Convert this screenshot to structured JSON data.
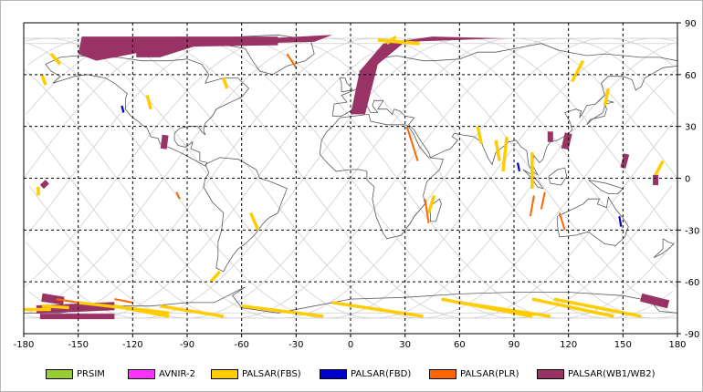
{
  "map": {
    "lon_range": [
      -180,
      180
    ],
    "lat_range": [
      -90,
      90
    ],
    "lon_ticks": [
      -180,
      -150,
      -120,
      -90,
      -60,
      -30,
      0,
      30,
      60,
      90,
      120,
      150,
      180
    ],
    "lat_ticks": [
      90,
      60,
      30,
      0,
      -30,
      -60,
      -90
    ],
    "lon_tick_labels": [
      "-180",
      "-150",
      "-120",
      "-90",
      "-60",
      "-30",
      "0",
      "30",
      "60",
      "90",
      "120",
      "150",
      "180"
    ],
    "lat_tick_labels": [
      "90",
      "60",
      "30",
      "0",
      "-30",
      "-60",
      "-90"
    ],
    "grid": "dashed",
    "colors": {
      "prsim": "#99cc33",
      "avnir2": "#ff33ff",
      "palsar_fbs": "#ffcc00",
      "palsar_fbd": "#0000cc",
      "palsar_plr": "#ff6600",
      "palsar_wb": "#993366",
      "orbit": "#cfcfcf",
      "coast": "#5a5a5a"
    }
  },
  "legend": {
    "items": [
      {
        "label": "PRSIM",
        "color": "#99cc33"
      },
      {
        "label": "AVNIR-2",
        "color": "#ff33ff"
      },
      {
        "label": "PALSAR(FBS)",
        "color": "#ffcc00"
      },
      {
        "label": "PALSAR(FBD)",
        "color": "#0000cc"
      },
      {
        "label": "PALSAR(PLR)",
        "color": "#ff6600"
      },
      {
        "label": "PALSAR(WB1/WB2)",
        "color": "#993366"
      }
    ]
  }
}
